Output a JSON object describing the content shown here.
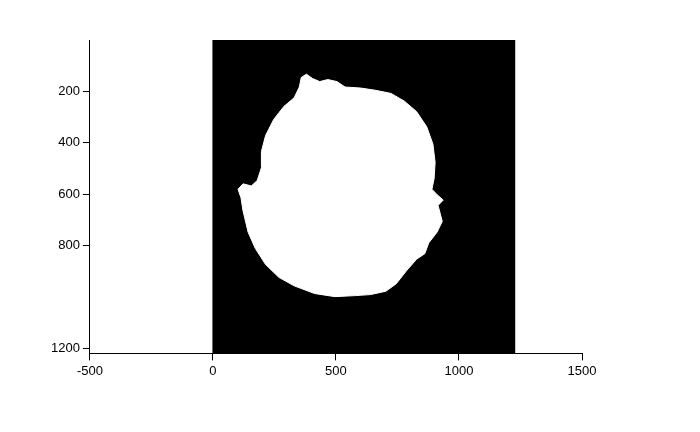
{
  "chart_data": {
    "type": "scatter",
    "xlim": [
      -500,
      1500
    ],
    "xticks": [
      -500,
      0,
      500,
      1000,
      1500
    ],
    "ylim": [
      1220,
      0
    ],
    "yticks": [
      200,
      400,
      600,
      800,
      1200
    ],
    "grid": false,
    "series": [
      {
        "color": "#000000",
        "line_style": "solid",
        "x": [
          0,
          1226,
          1226,
          0
        ],
        "y": [
          0,
          0,
          1220,
          1220
        ]
      },
      {
        "color": "#ffffff",
        "line_style": "solid",
        "x": [
          359,
          380,
          405,
          434,
          467,
          504,
          537,
          600,
          662,
          724,
          778,
          828,
          869,
          894,
          903,
          899,
          890,
          911,
          936,
          915,
          932,
          911,
          877,
          861,
          828,
          786,
          745,
          703,
          641,
          579,
          496,
          413,
          330,
          268,
          214,
          172,
          143,
          122,
          114,
          102,
          122,
          156,
          180,
          197,
          197,
          214,
          247,
          288,
          330,
          351
        ],
        "y": [
          146,
          133,
          150,
          162,
          154,
          162,
          183,
          187,
          196,
          208,
          238,
          279,
          338,
          405,
          476,
          539,
          581,
          602,
          623,
          644,
          706,
          748,
          790,
          832,
          853,
          899,
          949,
          978,
          991,
          995,
          999,
          987,
          957,
          924,
          874,
          811,
          748,
          664,
          614,
          581,
          560,
          568,
          547,
          497,
          434,
          372,
          309,
          259,
          225,
          183
        ]
      }
    ]
  }
}
